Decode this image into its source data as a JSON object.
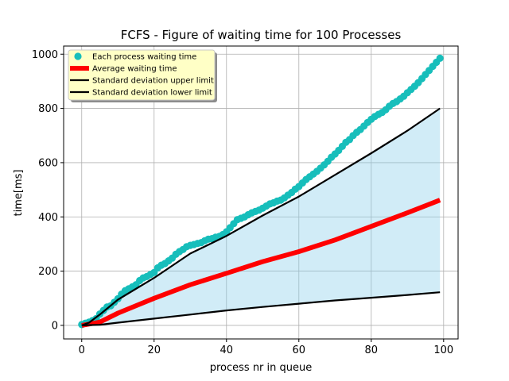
{
  "chart_data": {
    "type": "line",
    "title": "FCFS - Figure of waiting time for 100 Processes",
    "xlabel": "process nr in queue",
    "ylabel": "time[ms]",
    "xlim": [
      -5,
      104
    ],
    "ylim": [
      -50,
      1030
    ],
    "xticks": [
      0,
      20,
      40,
      60,
      80,
      100
    ],
    "yticks": [
      0,
      200,
      400,
      600,
      800,
      1000
    ],
    "grid": true,
    "legend_position": "top-left",
    "colors": {
      "scatter": "#17bebb",
      "average": "#ff0000",
      "std": "#000000",
      "fill": "#87ceeb",
      "legend_bg": "#ffffc6"
    },
    "series": [
      {
        "name": "Each process waiting time",
        "kind": "scatter",
        "x": [
          0,
          1,
          2,
          3,
          4,
          5,
          6,
          7,
          8,
          9,
          10,
          11,
          12,
          13,
          14,
          15,
          16,
          17,
          18,
          19,
          20,
          21,
          22,
          23,
          24,
          25,
          26,
          27,
          28,
          29,
          30,
          31,
          32,
          33,
          34,
          35,
          36,
          37,
          38,
          39,
          40,
          41,
          42,
          43,
          44,
          45,
          46,
          47,
          48,
          49,
          50,
          51,
          52,
          53,
          54,
          55,
          56,
          57,
          58,
          59,
          60,
          61,
          62,
          63,
          64,
          65,
          66,
          67,
          68,
          69,
          70,
          71,
          72,
          73,
          74,
          75,
          76,
          77,
          78,
          79,
          80,
          81,
          82,
          83,
          84,
          85,
          86,
          87,
          88,
          89,
          90,
          91,
          92,
          93,
          94,
          95,
          96,
          97,
          98,
          99
        ],
        "y": [
          3,
          8,
          12,
          18,
          25,
          42,
          55,
          68,
          72,
          85,
          98,
          115,
          128,
          135,
          142,
          150,
          165,
          175,
          180,
          188,
          195,
          212,
          222,
          228,
          238,
          248,
          262,
          272,
          280,
          290,
          295,
          298,
          302,
          305,
          312,
          318,
          320,
          325,
          328,
          335,
          345,
          360,
          375,
          390,
          395,
          400,
          408,
          415,
          420,
          425,
          432,
          440,
          448,
          452,
          458,
          462,
          470,
          480,
          490,
          502,
          512,
          525,
          538,
          548,
          558,
          568,
          580,
          592,
          605,
          620,
          632,
          645,
          660,
          675,
          685,
          700,
          712,
          722,
          735,
          748,
          760,
          770,
          778,
          785,
          795,
          808,
          818,
          825,
          835,
          845,
          858,
          870,
          882,
          895,
          910,
          925,
          940,
          955,
          970,
          985
        ]
      },
      {
        "name": "Average waiting time",
        "kind": "line",
        "x": [
          0,
          5,
          10,
          20,
          30,
          40,
          50,
          60,
          70,
          80,
          90,
          99
        ],
        "y": [
          0,
          12,
          45,
          100,
          150,
          192,
          235,
          272,
          315,
          365,
          415,
          462
        ]
      },
      {
        "name": "Standard deviation upper limit",
        "kind": "line",
        "x": [
          0,
          2,
          5,
          10,
          20,
          30,
          40,
          50,
          60,
          70,
          80,
          90,
          99
        ],
        "y": [
          0,
          10,
          40,
          95,
          175,
          265,
          330,
          405,
          475,
          555,
          635,
          718,
          800
        ]
      },
      {
        "name": "Standard deviation lower limit",
        "kind": "line",
        "x": [
          0,
          5,
          10,
          20,
          30,
          40,
          50,
          60,
          70,
          80,
          90,
          99
        ],
        "y": [
          0,
          2,
          10,
          25,
          40,
          55,
          68,
          80,
          92,
          102,
          112,
          122
        ]
      }
    ]
  }
}
